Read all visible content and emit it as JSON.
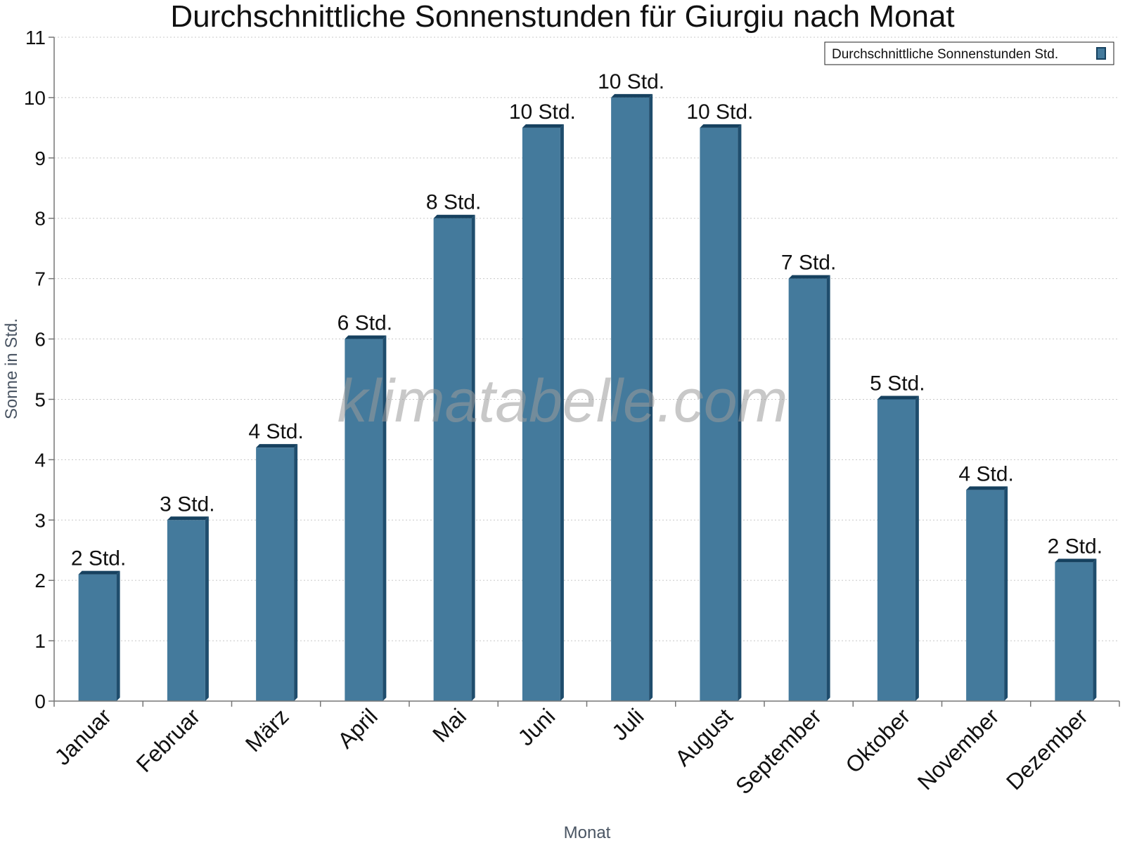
{
  "chart_data": {
    "type": "bar",
    "title": "Durchschnittliche Sonnenstunden für Giurgiu nach Monat",
    "xlabel": "Monat",
    "ylabel": "Sonne in Std.",
    "ylim": [
      0,
      11
    ],
    "yticks": [
      "0",
      "1",
      "2",
      "3",
      "4",
      "5",
      "6",
      "7",
      "8",
      "9",
      "10",
      "11"
    ],
    "categories": [
      "Januar",
      "Februar",
      "März",
      "April",
      "Mai",
      "Juni",
      "Juli",
      "August",
      "September",
      "Oktober",
      "November",
      "Dezember"
    ],
    "series": [
      {
        "name": "Durchschnittliche Sonnenstunden Std.",
        "values": [
          2.1,
          3.0,
          4.2,
          6.0,
          8.0,
          9.5,
          10.0,
          9.5,
          7.0,
          5.0,
          3.5,
          2.3
        ],
        "labels": [
          "2 Std.",
          "3 Std.",
          "4 Std.",
          "6 Std.",
          "8 Std.",
          "10 Std.",
          "10 Std.",
          "10 Std.",
          "7 Std.",
          "5 Std.",
          "4 Std.",
          "2 Std."
        ]
      }
    ],
    "legend_position": "top-right",
    "grid": true,
    "colors": {
      "bar_front": "#447a9c",
      "bar_side": "#1f4d6d",
      "bar_top": "#16415f",
      "grid": "#c8c8c8"
    }
  },
  "watermark": "klimatabelle.com"
}
